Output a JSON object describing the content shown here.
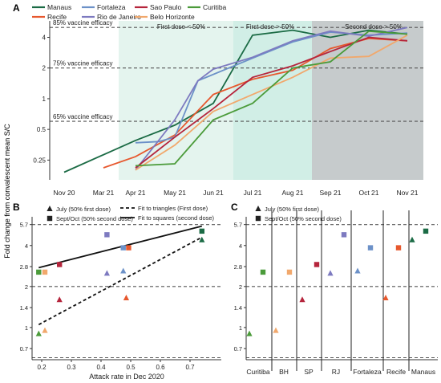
{
  "ylabel": "Fold change from convalescent mean S/C",
  "colors": {
    "Manaus": "#1b6b45",
    "Recife": "#e7582e",
    "Fortaleza": "#6c91c8",
    "Rio de Janeiro": "#7d7ac0",
    "Sao Paulo": "#b5253c",
    "Belo Horizonte": "#f1a86c",
    "Curitiba": "#4b9b3a"
  },
  "chart_data": [
    {
      "panel": "A",
      "type": "line",
      "legend": [
        "Manaus",
        "Fortaleza",
        "Sao Paulo",
        "Curitiba",
        "Recife",
        "Rio de Janeiro",
        "Belo Horizonte"
      ],
      "xticks": [
        "Nov 20",
        "Mar 21",
        "Apr 21",
        "May 21",
        "Jun 21",
        "Jul 21",
        "Aug 21",
        "Sep 21",
        "Oct 21",
        "Nov 21"
      ],
      "yticks": [
        "0.25",
        "0.5",
        "1",
        "2",
        "4"
      ],
      "ylim": [
        0.16,
        5.8
      ],
      "yscale": "log",
      "reference_lines": [
        {
          "label": "85% vaccine efficacy",
          "y": 5.0
        },
        {
          "label": "75% vaccine efficacy",
          "y": 2.0
        },
        {
          "label": "65% vaccine efficacy",
          "y": 0.6
        }
      ],
      "phases": [
        "First dose < 50%",
        "First dose > 50%",
        "Second dose > 50%"
      ],
      "series": [
        {
          "name": "Manaus",
          "points": [
            [
              0,
              0.19
            ],
            [
              2,
              0.39
            ],
            [
              3,
              0.55
            ],
            [
              4,
              0.9
            ],
            [
              5,
              4.2
            ],
            [
              6,
              4.7
            ],
            [
              7,
              4.0
            ],
            [
              8,
              4.7
            ],
            [
              9,
              4.3
            ]
          ]
        },
        {
          "name": "Recife",
          "points": [
            [
              1,
              0.21
            ],
            [
              2,
              0.27
            ],
            [
              3,
              0.44
            ],
            [
              4,
              1.1
            ],
            [
              5,
              1.55
            ],
            [
              6,
              1.9
            ],
            [
              7,
              3.1
            ],
            [
              8,
              3.9
            ],
            [
              9,
              3.7
            ]
          ]
        },
        {
          "name": "Fortaleza",
          "points": [
            [
              2,
              0.37
            ],
            [
              2.6,
              0.38
            ],
            [
              3,
              0.42
            ],
            [
              3.6,
              1.5
            ],
            [
              5,
              2.5
            ],
            [
              6,
              3.6
            ],
            [
              7,
              4.5
            ],
            [
              8,
              4.2
            ],
            [
              9,
              4.4
            ]
          ]
        },
        {
          "name": "Rio de Janeiro",
          "points": [
            [
              2,
              0.2
            ],
            [
              3,
              0.62
            ],
            [
              3.6,
              1.5
            ],
            [
              4,
              1.95
            ],
            [
              5,
              2.55
            ],
            [
              6,
              3.7
            ],
            [
              7,
              4.6
            ],
            [
              8,
              4.1
            ],
            [
              9,
              5.0
            ]
          ]
        },
        {
          "name": "Sao Paulo",
          "points": [
            [
              2,
              0.21
            ],
            [
              3,
              0.42
            ],
            [
              4,
              0.8
            ],
            [
              5,
              1.62
            ],
            [
              6,
              2.1
            ],
            [
              7,
              2.9
            ],
            [
              8,
              4.0
            ],
            [
              9,
              3.7
            ]
          ]
        },
        {
          "name": "Belo Horizonte",
          "points": [
            [
              2,
              0.2
            ],
            [
              3,
              0.35
            ],
            [
              4,
              0.75
            ],
            [
              5,
              1.1
            ],
            [
              6,
              1.62
            ],
            [
              7,
              2.5
            ],
            [
              8,
              2.6
            ],
            [
              9,
              4.2
            ]
          ]
        },
        {
          "name": "Curitiba",
          "points": [
            [
              2,
              0.22
            ],
            [
              3,
              0.23
            ],
            [
              4,
              0.62
            ],
            [
              5,
              0.9
            ],
            [
              6,
              2.0
            ],
            [
              7,
              2.3
            ],
            [
              8,
              4.6
            ],
            [
              9,
              4.3
            ]
          ]
        }
      ]
    },
    {
      "panel": "B",
      "type": "scatter",
      "legend": [
        "July (50% first dose)",
        "Sept/Oct (50% second dose)",
        "Fit to triangles (First dose)",
        "Fit to squares (second dose)"
      ],
      "xlabel": "Attack rate in Dec 2020",
      "xticks": [
        "0.2",
        "0.3",
        "0.4",
        "0.5",
        "0.6",
        "0.7"
      ],
      "xlim": [
        0.17,
        0.77
      ],
      "yticks": [
        "0.7",
        "1",
        "1.4",
        "2",
        "2.8",
        "4",
        "5.7"
      ],
      "ylim": [
        0.58,
        6.5
      ],
      "yscale": "log",
      "reference_lines": [
        5.7,
        2.0,
        0.6
      ],
      "triangles": [
        {
          "city": "Curitiba",
          "x": 0.19,
          "y": 0.9
        },
        {
          "city": "Belo Horizonte",
          "x": 0.2,
          "y": 0.95
        },
        {
          "city": "Sao Paulo",
          "x": 0.26,
          "y": 1.6
        },
        {
          "city": "Rio de Janeiro",
          "x": 0.42,
          "y": 2.5
        },
        {
          "city": "Fortaleza",
          "x": 0.475,
          "y": 2.6
        },
        {
          "city": "Recife",
          "x": 0.485,
          "y": 1.65
        },
        {
          "city": "Manaus",
          "x": 0.74,
          "y": 4.4
        }
      ],
      "squares": [
        {
          "city": "Curitiba",
          "x": 0.19,
          "y": 2.55
        },
        {
          "city": "Belo Horizonte",
          "x": 0.2,
          "y": 2.55
        },
        {
          "city": "Sao Paulo",
          "x": 0.26,
          "y": 2.9
        },
        {
          "city": "Rio de Janeiro",
          "x": 0.42,
          "y": 4.8
        },
        {
          "city": "Fortaleza",
          "x": 0.475,
          "y": 3.85
        },
        {
          "city": "Recife",
          "x": 0.485,
          "y": 3.85
        },
        {
          "city": "Manaus",
          "x": 0.74,
          "y": 5.1
        }
      ],
      "fit_first_dose": [
        [
          0.19,
          1.05
        ],
        [
          0.74,
          4.6
        ]
      ],
      "fit_second_dose": [
        [
          0.19,
          2.75
        ],
        [
          0.74,
          5.55
        ]
      ]
    },
    {
      "panel": "C",
      "type": "scatter",
      "legend": [
        "July (50% first dose)",
        "Sept/Oct (50% second dose)"
      ],
      "categories": [
        "Curitiba",
        "BH",
        "SP",
        "RJ",
        "Fortaleza",
        "Recife",
        "Manaus"
      ],
      "yticks": [
        "0.7",
        "1",
        "1.4",
        "2",
        "2.8",
        "4",
        "5.7"
      ],
      "ylim": [
        0.58,
        6.5
      ],
      "yscale": "log",
      "reference_lines": [
        5.7,
        2.0,
        0.6
      ],
      "triangles": [
        0.9,
        0.95,
        1.6,
        2.5,
        2.6,
        1.65,
        4.4
      ],
      "squares": [
        2.55,
        2.55,
        2.9,
        4.8,
        3.85,
        3.85,
        5.1
      ],
      "point_colors": [
        "Curitiba",
        "Belo Horizonte",
        "Sao Paulo",
        "Rio de Janeiro",
        "Fortaleza",
        "Recife",
        "Manaus"
      ]
    }
  ],
  "panels": {
    "a": "A",
    "b": "B",
    "c": "C"
  }
}
